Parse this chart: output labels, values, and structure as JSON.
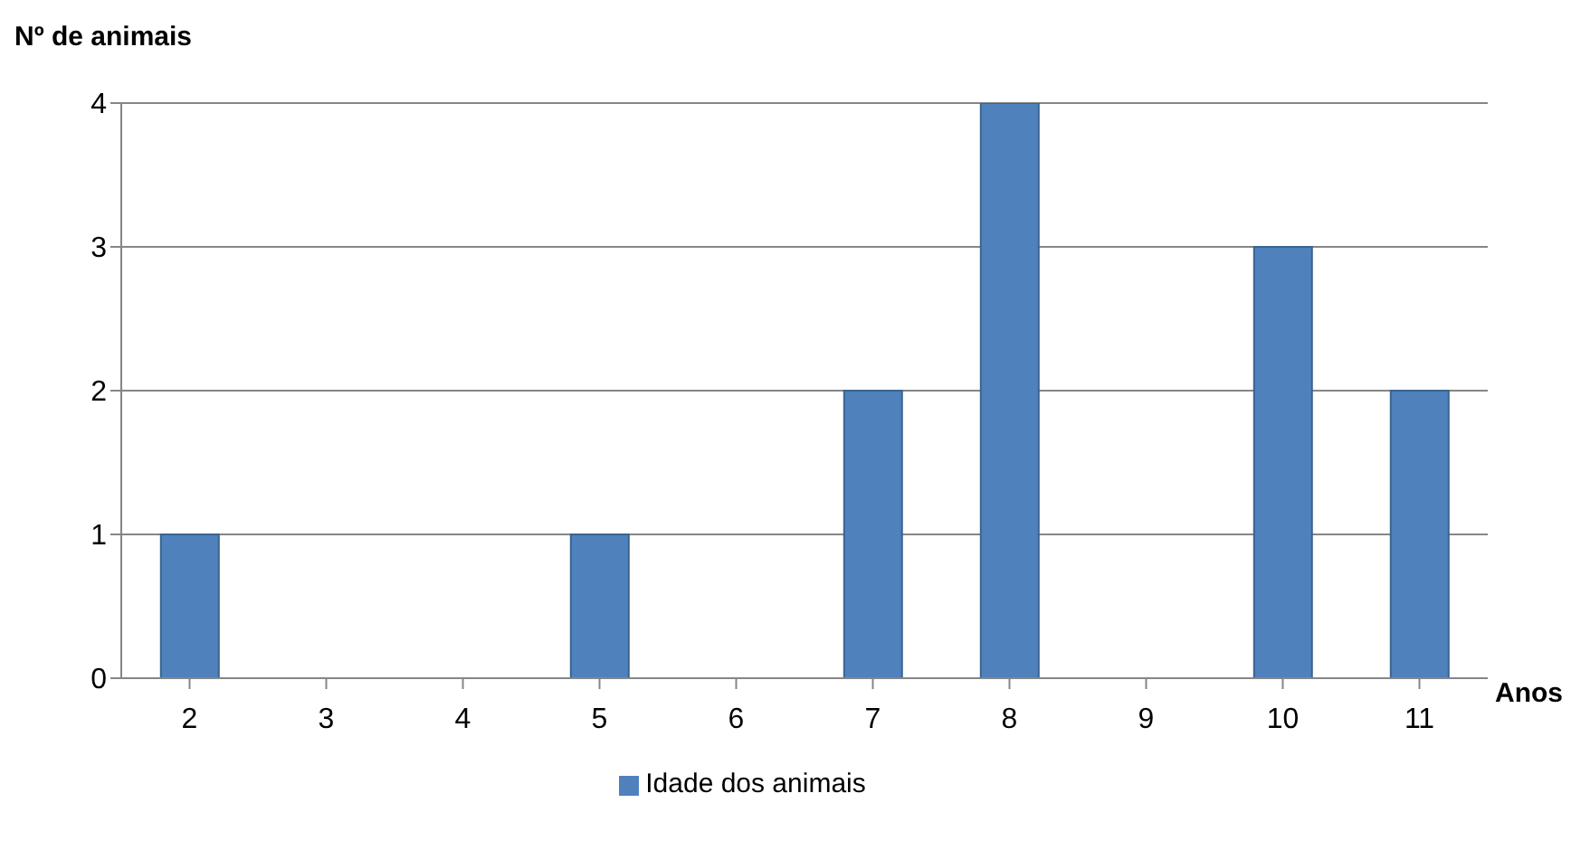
{
  "chart_data": {
    "type": "bar",
    "xlabel": "Anos",
    "ylabel": "Nº de animais",
    "categories": [
      "2",
      "3",
      "4",
      "5",
      "6",
      "7",
      "8",
      "9",
      "10",
      "11"
    ],
    "series": [
      {
        "name": "Idade dos animais",
        "color": "#4f81bd",
        "values": [
          1,
          0,
          0,
          1,
          0,
          2,
          4,
          0,
          3,
          2
        ]
      }
    ],
    "ylim": [
      0,
      4
    ],
    "yticks": [
      0,
      1,
      2,
      3,
      4
    ],
    "grid": "y",
    "legend": "bottom"
  }
}
